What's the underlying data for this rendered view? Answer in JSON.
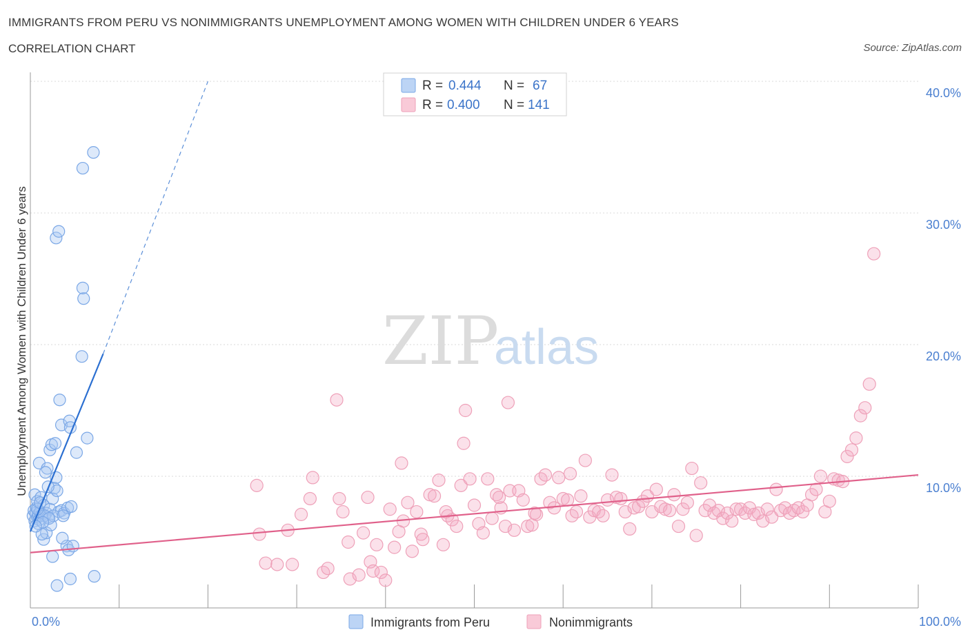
{
  "header": {
    "title": "IMMIGRANTS FROM PERU VS NONIMMIGRANTS UNEMPLOYMENT AMONG WOMEN WITH CHILDREN UNDER 6 YEARS",
    "subtitle": "CORRELATION CHART",
    "source": "Source: ZipAtlas.com"
  },
  "watermark": {
    "zip": "ZIP",
    "atlas": "atlas"
  },
  "legend": {
    "r_label": "R =",
    "n_label": "N =",
    "rows": [
      {
        "r": "0.444",
        "n": "67"
      },
      {
        "r": "0.400",
        "n": "141"
      }
    ]
  },
  "chart_data": {
    "type": "scatter",
    "title": "IMMIGRANTS FROM PERU VS NONIMMIGRANTS UNEMPLOYMENT AMONG WOMEN WITH CHILDREN UNDER 6 YEARS",
    "subtitle": "CORRELATION CHART",
    "xlabel": "",
    "ylabel": "Unemployment Among Women with Children Under 6 years",
    "xlim": [
      0,
      100
    ],
    "ylim": [
      0,
      40
    ],
    "x_tick_labels": [
      "0.0%",
      "100.0%"
    ],
    "y_ticks": [
      10,
      20,
      30,
      40
    ],
    "y_tick_labels": [
      "10.0%",
      "20.0%",
      "30.0%",
      "40.0%"
    ],
    "grid": true,
    "legend_position": "top-center",
    "colors": {
      "peru": "#5b8fd8",
      "nonimmigrants": "#e97fa0",
      "peru_line": "#2b6fd1",
      "nonimmigrants_line": "#e0608a"
    },
    "series": [
      {
        "name": "Immigrants from Peru",
        "r": 0.444,
        "n": 67,
        "trend": {
          "x0": 0,
          "y0": 5.8,
          "x1": 8.2,
          "y1": 19.3,
          "dashed_to_x": 20,
          "dashed_to_y": 40
        },
        "points": [
          [
            0.3,
            7.0
          ],
          [
            0.4,
            7.4
          ],
          [
            0.5,
            6.6
          ],
          [
            0.6,
            7.2
          ],
          [
            0.7,
            7.6
          ],
          [
            0.8,
            6.9
          ],
          [
            0.9,
            7.1
          ],
          [
            1.0,
            6.7
          ],
          [
            1.1,
            7.3
          ],
          [
            1.2,
            7.0
          ],
          [
            0.5,
            8.6
          ],
          [
            0.8,
            8.1
          ],
          [
            1.2,
            8.4
          ],
          [
            1.5,
            7.8
          ],
          [
            1.8,
            7.2
          ],
          [
            2.0,
            6.9
          ],
          [
            2.2,
            7.5
          ],
          [
            2.5,
            8.3
          ],
          [
            2.7,
            9.1
          ],
          [
            3.0,
            8.9
          ],
          [
            1.0,
            11.0
          ],
          [
            1.9,
            10.6
          ],
          [
            2.2,
            12.0
          ],
          [
            2.4,
            12.4
          ],
          [
            2.8,
            12.5
          ],
          [
            2.9,
            9.9
          ],
          [
            3.2,
            7.3
          ],
          [
            3.5,
            7.4
          ],
          [
            3.8,
            7.2
          ],
          [
            4.2,
            7.6
          ],
          [
            4.6,
            7.7
          ],
          [
            3.3,
            15.8
          ],
          [
            3.5,
            13.9
          ],
          [
            4.4,
            14.2
          ],
          [
            4.5,
            13.7
          ],
          [
            5.2,
            11.8
          ],
          [
            6.4,
            12.9
          ],
          [
            5.8,
            19.1
          ],
          [
            6.0,
            23.5
          ],
          [
            5.9,
            24.3
          ],
          [
            2.9,
            28.1
          ],
          [
            3.2,
            28.6
          ],
          [
            5.9,
            33.4
          ],
          [
            7.1,
            34.6
          ],
          [
            4.1,
            4.7
          ],
          [
            4.3,
            4.4
          ],
          [
            4.8,
            4.7
          ],
          [
            2.5,
            3.9
          ],
          [
            3.0,
            1.7
          ],
          [
            4.5,
            2.2
          ],
          [
            7.2,
            2.4
          ],
          [
            1.5,
            5.2
          ],
          [
            1.8,
            5.7
          ],
          [
            1.3,
            5.6
          ],
          [
            3.6,
            5.3
          ],
          [
            2.3,
            6.3
          ],
          [
            1.6,
            7.0
          ],
          [
            0.9,
            6.4
          ],
          [
            2.6,
            7.0
          ],
          [
            2.1,
            6.8
          ],
          [
            1.4,
            6.5
          ],
          [
            0.6,
            6.2
          ],
          [
            0.8,
            7.5
          ],
          [
            1.1,
            8.0
          ],
          [
            2.0,
            9.2
          ],
          [
            1.7,
            10.3
          ],
          [
            3.7,
            7.0
          ]
        ]
      },
      {
        "name": "Nonimmigrants",
        "r": 0.4,
        "n": 141,
        "trend": {
          "x0": 0,
          "y0": 4.2,
          "x1": 100,
          "y1": 10.1
        },
        "points": [
          [
            25.5,
            9.3
          ],
          [
            25.8,
            5.6
          ],
          [
            26.5,
            3.4
          ],
          [
            27.8,
            3.3
          ],
          [
            29.0,
            5.9
          ],
          [
            29.5,
            3.3
          ],
          [
            30.5,
            7.1
          ],
          [
            31.5,
            8.3
          ],
          [
            31.8,
            9.9
          ],
          [
            33.0,
            2.7
          ],
          [
            33.5,
            3.0
          ],
          [
            34.5,
            15.8
          ],
          [
            34.8,
            8.3
          ],
          [
            35.2,
            7.3
          ],
          [
            35.8,
            5.0
          ],
          [
            36.0,
            2.2
          ],
          [
            37.0,
            2.5
          ],
          [
            37.5,
            5.7
          ],
          [
            38.0,
            8.4
          ],
          [
            38.3,
            3.5
          ],
          [
            38.6,
            2.8
          ],
          [
            39.0,
            4.8
          ],
          [
            39.5,
            2.7
          ],
          [
            40.0,
            2.1
          ],
          [
            40.5,
            7.5
          ],
          [
            41.0,
            4.6
          ],
          [
            41.5,
            5.8
          ],
          [
            41.8,
            11.0
          ],
          [
            42.0,
            6.6
          ],
          [
            42.5,
            8.0
          ],
          [
            43.0,
            4.3
          ],
          [
            43.5,
            7.3
          ],
          [
            44.0,
            5.6
          ],
          [
            44.2,
            5.2
          ],
          [
            45.0,
            8.6
          ],
          [
            45.5,
            8.5
          ],
          [
            46.0,
            9.7
          ],
          [
            46.5,
            4.8
          ],
          [
            47.0,
            7.0
          ],
          [
            47.5,
            6.7
          ],
          [
            48.0,
            6.2
          ],
          [
            48.5,
            9.3
          ],
          [
            48.8,
            12.5
          ],
          [
            49.0,
            15.0
          ],
          [
            49.5,
            9.8
          ],
          [
            50.0,
            7.8
          ],
          [
            50.5,
            6.4
          ],
          [
            51.0,
            5.7
          ],
          [
            51.5,
            9.8
          ],
          [
            52.0,
            6.8
          ],
          [
            52.5,
            8.6
          ],
          [
            53.0,
            7.6
          ],
          [
            53.5,
            6.2
          ],
          [
            53.8,
            15.6
          ],
          [
            54.0,
            8.9
          ],
          [
            54.5,
            5.9
          ],
          [
            55.0,
            8.9
          ],
          [
            55.5,
            8.2
          ],
          [
            56.0,
            6.2
          ],
          [
            56.5,
            6.3
          ],
          [
            57.0,
            7.1
          ],
          [
            57.5,
            9.8
          ],
          [
            58.0,
            10.1
          ],
          [
            58.5,
            8.0
          ],
          [
            59.0,
            7.6
          ],
          [
            59.5,
            9.9
          ],
          [
            60.0,
            8.3
          ],
          [
            60.5,
            8.2
          ],
          [
            61.0,
            7.0
          ],
          [
            61.5,
            7.3
          ],
          [
            62.0,
            8.5
          ],
          [
            62.5,
            11.2
          ],
          [
            63.0,
            6.9
          ],
          [
            63.5,
            7.4
          ],
          [
            64.0,
            7.3
          ],
          [
            64.5,
            7.0
          ],
          [
            65.0,
            8.2
          ],
          [
            65.5,
            10.1
          ],
          [
            66.0,
            8.4
          ],
          [
            66.5,
            8.3
          ],
          [
            67.0,
            7.3
          ],
          [
            67.5,
            6.0
          ],
          [
            68.0,
            7.6
          ],
          [
            68.5,
            7.7
          ],
          [
            69.0,
            8.1
          ],
          [
            69.5,
            8.5
          ],
          [
            70.0,
            7.3
          ],
          [
            70.5,
            9.0
          ],
          [
            71.0,
            7.7
          ],
          [
            71.5,
            7.5
          ],
          [
            72.0,
            7.4
          ],
          [
            72.5,
            8.6
          ],
          [
            73.0,
            6.2
          ],
          [
            73.5,
            7.5
          ],
          [
            74.0,
            8.0
          ],
          [
            74.5,
            10.6
          ],
          [
            75.0,
            5.5
          ],
          [
            75.5,
            9.5
          ],
          [
            76.0,
            7.4
          ],
          [
            76.5,
            7.8
          ],
          [
            77.0,
            7.2
          ],
          [
            77.5,
            7.4
          ],
          [
            78.0,
            6.8
          ],
          [
            78.5,
            7.2
          ],
          [
            79.0,
            6.6
          ],
          [
            79.5,
            7.5
          ],
          [
            80.0,
            7.5
          ],
          [
            80.5,
            7.2
          ],
          [
            81.0,
            7.6
          ],
          [
            81.5,
            7.1
          ],
          [
            82.0,
            7.2
          ],
          [
            82.5,
            6.6
          ],
          [
            83.0,
            7.5
          ],
          [
            83.5,
            6.9
          ],
          [
            84.0,
            9.0
          ],
          [
            84.5,
            7.4
          ],
          [
            85.0,
            7.6
          ],
          [
            85.5,
            7.2
          ],
          [
            86.0,
            7.4
          ],
          [
            86.5,
            7.6
          ],
          [
            87.0,
            7.3
          ],
          [
            87.5,
            7.8
          ],
          [
            88.0,
            8.6
          ],
          [
            88.5,
            9.0
          ],
          [
            89.0,
            10.0
          ],
          [
            89.5,
            7.3
          ],
          [
            90.0,
            8.1
          ],
          [
            90.5,
            9.8
          ],
          [
            91.0,
            9.7
          ],
          [
            91.5,
            9.6
          ],
          [
            92.0,
            11.5
          ],
          [
            92.5,
            12.0
          ],
          [
            93.0,
            12.9
          ],
          [
            93.5,
            14.6
          ],
          [
            94.0,
            15.2
          ],
          [
            94.5,
            17.0
          ],
          [
            95.0,
            26.9
          ],
          [
            60.8,
            10.2
          ],
          [
            56.8,
            7.2
          ],
          [
            52.8,
            8.4
          ],
          [
            46.8,
            7.3
          ]
        ]
      }
    ]
  },
  "bottom_legend": [
    {
      "label": "Immigrants from Peru"
    },
    {
      "label": "Nonimmigrants"
    }
  ]
}
